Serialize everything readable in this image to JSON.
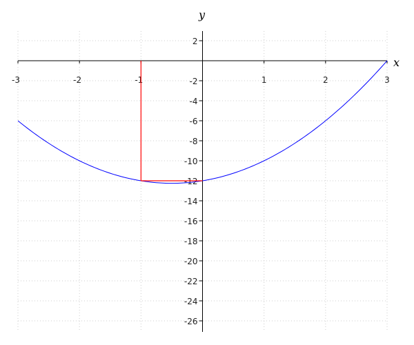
{
  "chart_data": {
    "type": "line",
    "xlabel": "x",
    "ylabel": "y",
    "xlim": [
      -3,
      3
    ],
    "ylim": [
      -27,
      3
    ],
    "grid": true,
    "x_ticks": [
      "-3",
      "-2",
      "-1",
      "1",
      "2",
      "3"
    ],
    "y_ticks": [
      "2",
      "-2",
      "-4",
      "-6",
      "-8",
      "-10",
      "-12",
      "-14",
      "-16",
      "-18",
      "-20",
      "-22",
      "-24",
      "-26"
    ],
    "series": [
      {
        "function": "y = x^2 + x - 12",
        "x_range": [
          -3,
          3
        ],
        "color": "#0000ff",
        "samples": [
          [
            -3,
            -6
          ],
          [
            -2,
            -10
          ],
          [
            -1,
            -12
          ],
          [
            -0.5,
            -12.25
          ],
          [
            0,
            -12
          ],
          [
            1,
            -10
          ],
          [
            2,
            -6
          ],
          [
            3,
            0
          ]
        ]
      }
    ],
    "annotations": [
      {
        "type": "segment",
        "from": [
          -1,
          0
        ],
        "to": [
          -1,
          -12
        ],
        "color": "#ff0000"
      },
      {
        "type": "segment",
        "from": [
          -1,
          -12
        ],
        "to": [
          0,
          -12
        ],
        "color": "#ff0000"
      }
    ]
  }
}
